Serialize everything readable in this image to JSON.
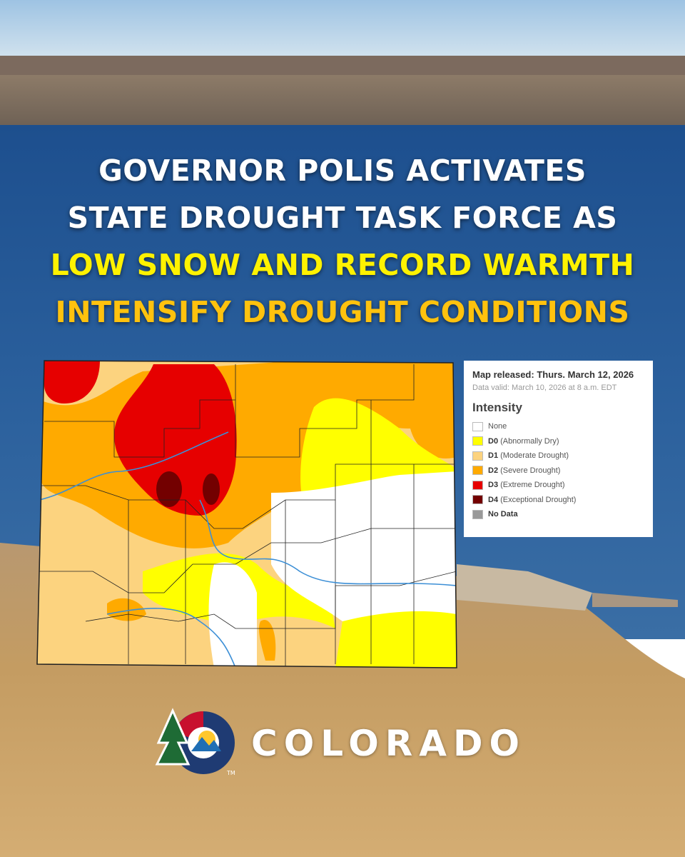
{
  "headline": {
    "lines": [
      "GOVERNOR POLIS ACTIVATES",
      "STATE DROUGHT TASK FORCE AS",
      "LOW SNOW AND RECORD WARMTH",
      "INTENSIFY DROUGHT CONDITIONS"
    ]
  },
  "legend": {
    "released": "Map released: Thurs. March 12, 2026",
    "valid": "Data valid: March 10, 2026 at 8 a.m. EDT",
    "title": "Intensity",
    "items": [
      {
        "label": "None"
      },
      {
        "code": "D0",
        "label": "(Abnormally Dry)"
      },
      {
        "code": "D1",
        "label": "(Moderate Drought)"
      },
      {
        "code": "D2",
        "label": "(Severe Drought)"
      },
      {
        "code": "D3",
        "label": "(Extreme Drought)"
      },
      {
        "code": "D4",
        "label": "(Exceptional Drought)"
      },
      {
        "label": "No Data"
      }
    ]
  },
  "logo": {
    "text": "COLORADO",
    "mark": "TM"
  }
}
